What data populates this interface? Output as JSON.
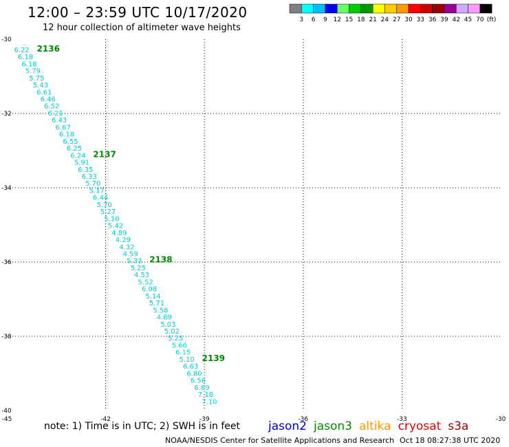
{
  "header": {
    "title": "12:00 – 23:59 UTC 10/17/2020",
    "subtitle": "12 hour collection of altimeter wave heights"
  },
  "legend": {
    "colors": [
      "#808080",
      "#00ffff",
      "#00bfff",
      "#0000ff",
      "#66ff66",
      "#00cc00",
      "#009900",
      "#ffff00",
      "#ffcc00",
      "#ff9900",
      "#ff0000",
      "#cc0000",
      "#990000",
      "#990099",
      "#ccaaff",
      "#ff99ff",
      "#000000"
    ],
    "labels": [
      "3",
      "6",
      "9",
      "12",
      "15",
      "18",
      "21",
      "24",
      "27",
      "30",
      "33",
      "36",
      "39",
      "42",
      "45",
      "70"
    ],
    "unit": "(ft)"
  },
  "chart_data": {
    "type": "scatter",
    "title": "12:00 – 23:59 UTC 10/17/2020",
    "subtitle": "12 hour collection of altimeter wave heights",
    "x_axis": {
      "label": "",
      "range": [
        -45,
        -30
      ],
      "ticks": [
        "-45",
        "-42",
        "-39",
        "-36",
        "-33",
        "-30"
      ]
    },
    "y_axis": {
      "label": "",
      "range": [
        -40,
        -30
      ],
      "ticks": [
        "-30",
        "-32",
        "-34",
        "-36",
        "-38",
        "-40"
      ]
    },
    "grid": true,
    "value_color": "#00cccc",
    "pass_color": "#008800",
    "track": {
      "start": {
        "lon": -44.55,
        "lat": -30.35
      },
      "end": {
        "lon": -38.85,
        "lat": -39.82
      },
      "values": [
        "6.22",
        "6.18",
        "6.18",
        "5.79",
        "5.75",
        "5.43",
        "6.61",
        "6.46",
        "6.52",
        "6.21",
        "6.43",
        "6.67",
        "6.18",
        "6.55",
        "6.25",
        "6.24",
        "5.91",
        "6.35",
        "6.33",
        "5.70",
        "5.17",
        "6.44",
        "5.70",
        "5.27",
        "5.10",
        "5.42",
        "4.89",
        "4.29",
        "4.32",
        "4.59",
        "5.33",
        "5.25",
        "4.53",
        "5.52",
        "6.08",
        "5.14",
        "5.71",
        "5.58",
        "4.89",
        "5.03",
        "5.02",
        "5.25",
        "5.66",
        "6.15",
        "5.10",
        "6.63",
        "6.80",
        "6.56",
        "6.69",
        "7.18",
        "7.10"
      ]
    },
    "passes": [
      {
        "label": "2136",
        "index": 0
      },
      {
        "label": "2137",
        "index": 15
      },
      {
        "label": "2138",
        "index": 30
      },
      {
        "label": "2139",
        "index": 44
      }
    ]
  },
  "footer": {
    "note": "note:  1) Time is in UTC;  2) SWH is in feet",
    "satellites": [
      {
        "name": "jason2",
        "color": "#0000cc"
      },
      {
        "name": "jason3",
        "color": "#008800"
      },
      {
        "name": "altika",
        "color": "#ff9900"
      },
      {
        "name": "cryosat",
        "color": "#dd0000"
      },
      {
        "name": "s3a",
        "color": "#990000"
      }
    ],
    "credit": "NOAA/NESDIS Center for Satellite Applications and Research",
    "timestamp": "Oct 18 08:27:38 UTC 2020"
  }
}
